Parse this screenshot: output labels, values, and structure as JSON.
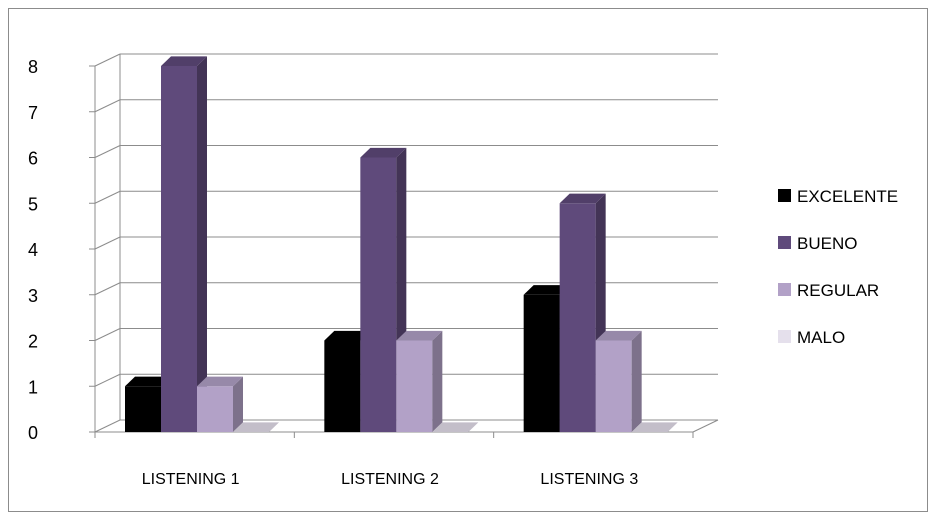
{
  "chart_data": {
    "type": "bar",
    "three_d": true,
    "categories": [
      "LISTENING 1",
      "LISTENING 2",
      "LISTENING 3"
    ],
    "series": [
      {
        "name": "EXCELENTE",
        "values": [
          1,
          2,
          3
        ],
        "color": "#000000"
      },
      {
        "name": "BUENO",
        "values": [
          8,
          6,
          5
        ],
        "color": "#5f4a7b"
      },
      {
        "name": "REGULAR",
        "values": [
          1,
          2,
          2
        ],
        "color": "#b2a1c7"
      },
      {
        "name": "MALO",
        "values": [
          0,
          0,
          0
        ],
        "color": "#e5e0ec"
      }
    ],
    "y_ticks": [
      "0",
      "1",
      "2",
      "3",
      "4",
      "5",
      "6",
      "7",
      "8"
    ],
    "ylim": [
      0,
      8
    ],
    "grid": true,
    "legend_position": "right"
  }
}
